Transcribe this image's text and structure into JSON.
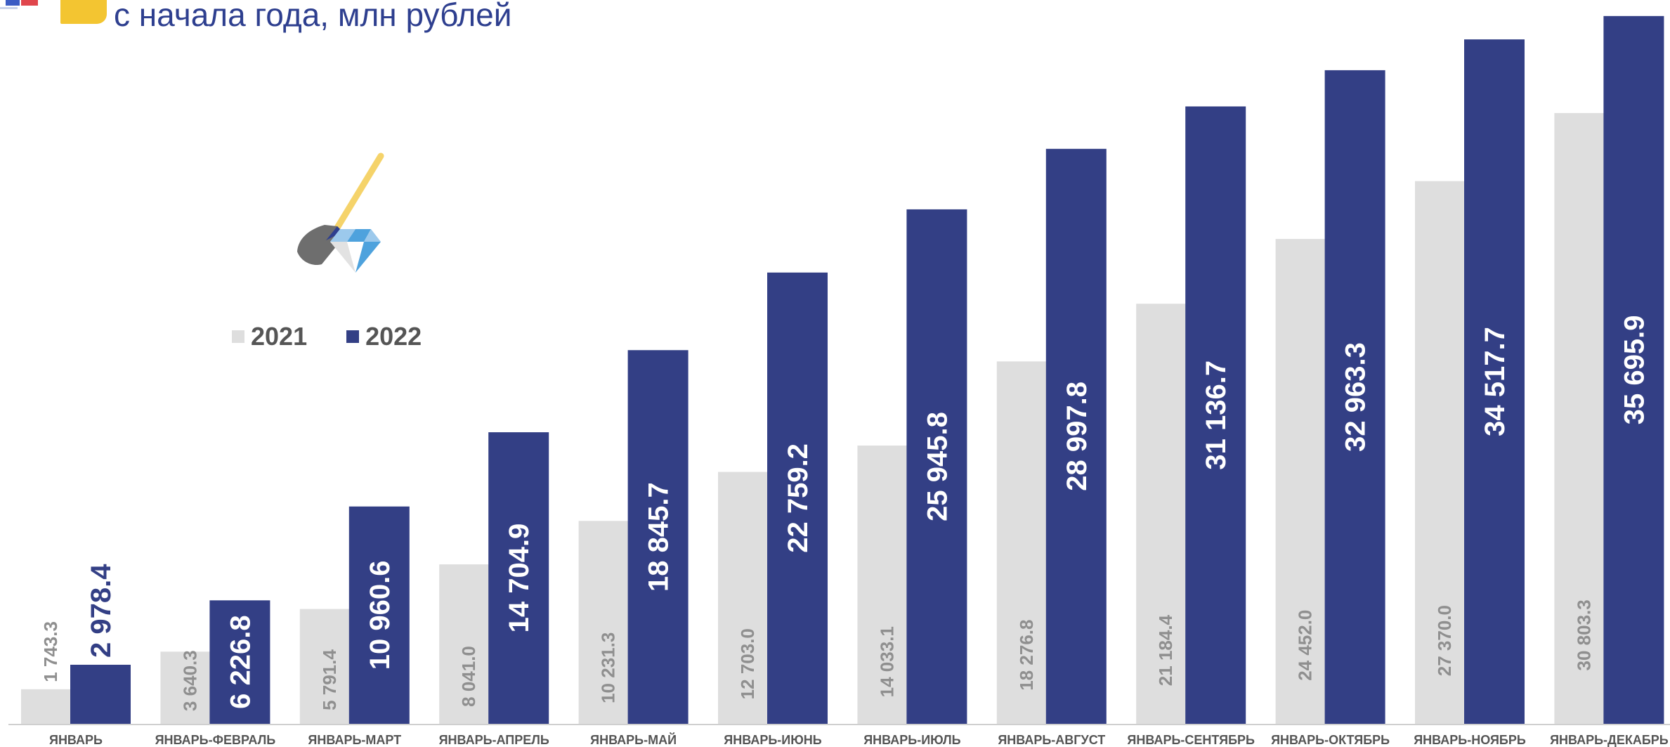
{
  "header": {
    "subtitle": "с начала года, млн рублей"
  },
  "legend": {
    "items": [
      {
        "label": "2021",
        "color": "#dedede"
      },
      {
        "label": "2022",
        "color": "#333f85"
      }
    ]
  },
  "illustration": {
    "icon": "shovel-diamond-icon"
  },
  "chart_data": {
    "type": "bar",
    "categories": [
      "ЯНВАРЬ",
      "ЯНВАРЬ-ФЕВРАЛЬ",
      "ЯНВАРЬ-МАРТ",
      "ЯНВАРЬ-АПРЕЛЬ",
      "ЯНВАРЬ-МАЙ",
      "ЯНВАРЬ-ИЮНЬ",
      "ЯНВАРЬ-ИЮЛЬ",
      "ЯНВАРЬ-АВГУСТ",
      "ЯНВАРЬ-СЕНТЯБРЬ",
      "ЯНВАРЬ-ОКТЯБРЬ",
      "ЯНВАРЬ-НОЯБРЬ",
      "ЯНВАРЬ-ДЕКАБРЬ"
    ],
    "series": [
      {
        "name": "2021",
        "color": "#dedede",
        "values": [
          1743.3,
          3640.3,
          5791.4,
          8041.0,
          10231.3,
          12703.0,
          14033.1,
          18276.8,
          21184.4,
          24452.0,
          27370.0,
          30803.3
        ],
        "labels": [
          "1 743.3",
          "3 640.3",
          "5 791.4",
          "8 041.0",
          "10 231.3",
          "12 703.0",
          "14 033.1",
          "18 276.8",
          "21 184.4",
          "24 452.0",
          "27 370.0",
          "30 803.3"
        ]
      },
      {
        "name": "2022",
        "color": "#333f85",
        "values": [
          2978.4,
          6226.8,
          10960.6,
          14704.9,
          18845.7,
          22759.2,
          25945.8,
          28997.8,
          31136.7,
          32963.3,
          34517.7,
          35695.9
        ],
        "labels": [
          "2 978.4",
          "6 226.8",
          "10 960.6",
          "14 704.9",
          "18 845.7",
          "22 759.2",
          "25 945.8",
          "28 997.8",
          "31 136.7",
          "32 963.3",
          "34 517.7",
          "35 695.9"
        ]
      }
    ],
    "ylim": [
      0,
      36150
    ],
    "grid": false,
    "legend_position": "left"
  }
}
